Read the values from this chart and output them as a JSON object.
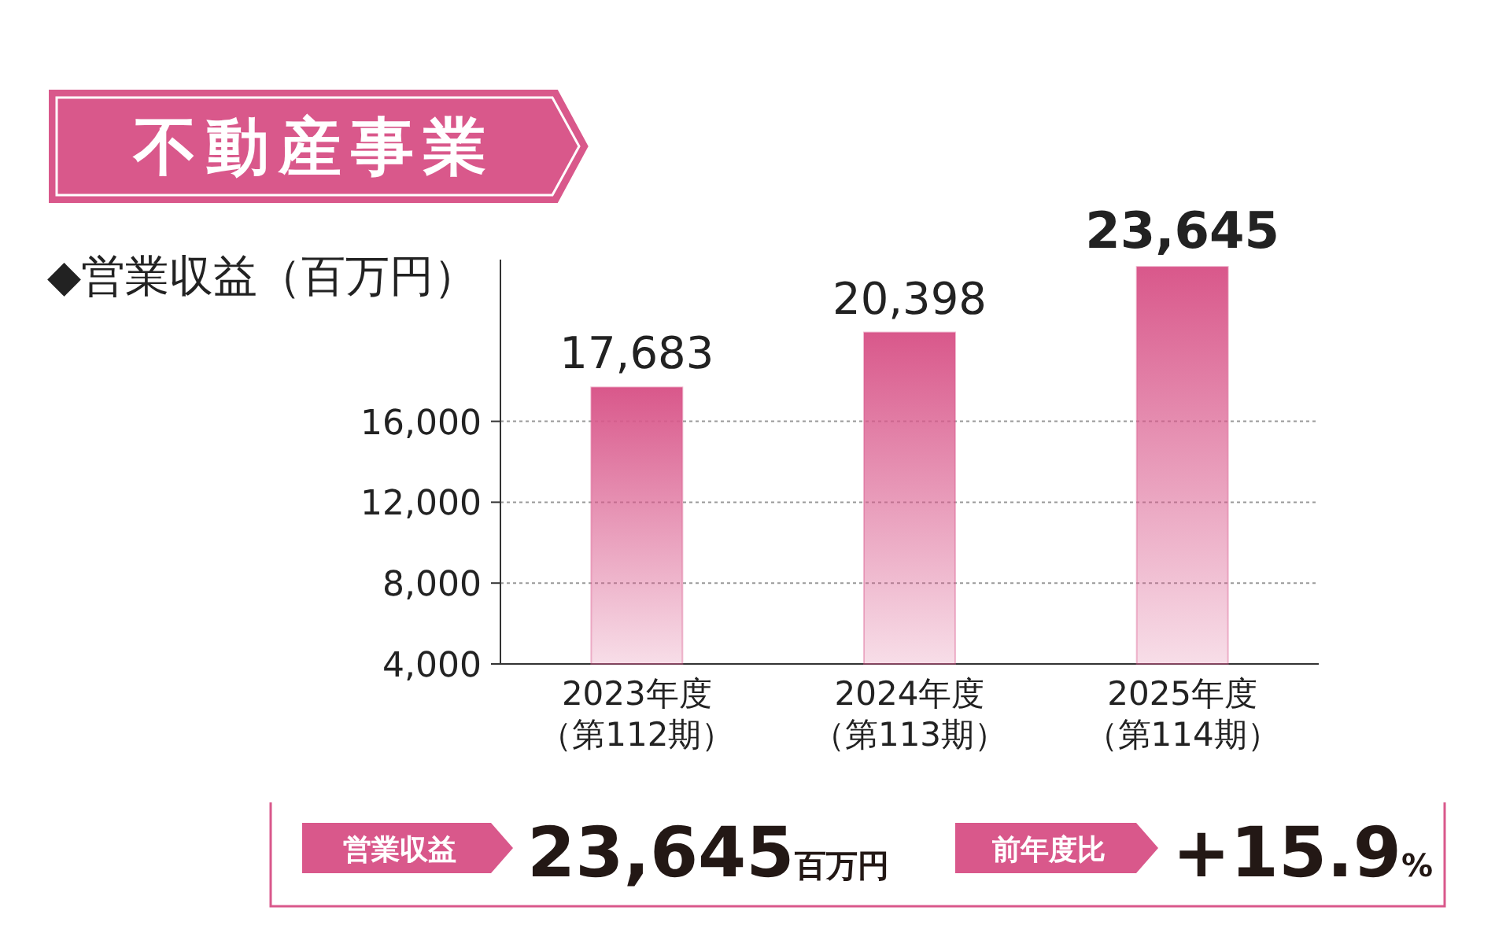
{
  "chart_data": {
    "type": "bar",
    "title": "不動産事業",
    "ylabel": "◆営業収益（百万円）",
    "categories": [
      "2023年度（第112期）",
      "2024年度（第113期）",
      "2025年度（第114期）"
    ],
    "values": [
      17683,
      20398,
      23645
    ],
    "color": "#d9588b",
    "ylim": [
      4000,
      24000
    ],
    "yticks": [
      {
        "value": 4000,
        "label": "4,000"
      },
      {
        "value": 8000,
        "label": "8,000"
      },
      {
        "value": 12000,
        "label": "12,000"
      },
      {
        "value": 16000,
        "label": "16,000"
      }
    ],
    "grid": "y",
    "value_labels": [
      "17,683",
      "20,398",
      "23,645"
    ],
    "annotations": [
      "営業収益",
      "23,645百万円",
      "前年度比",
      "+15.9%"
    ]
  }
}
